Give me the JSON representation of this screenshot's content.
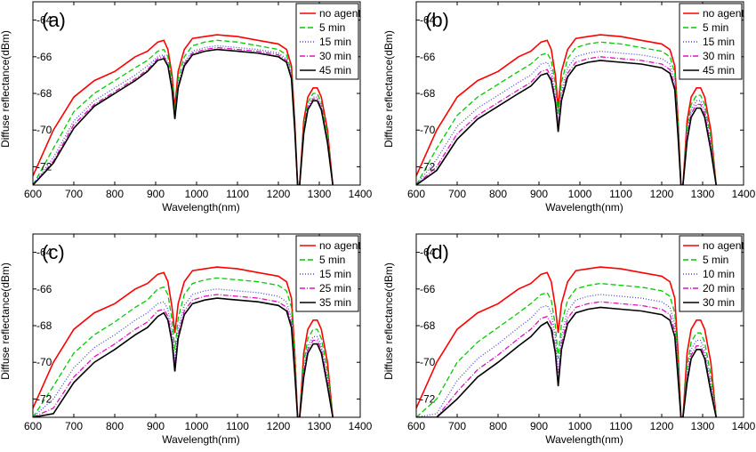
{
  "chart_data": [
    {
      "type": "line",
      "panel_label": "(a)",
      "xlabel": "Wavelength(nm)",
      "ylabel": "Diffuse reflectance(dBm)",
      "xlim": [
        600,
        1400
      ],
      "ylim": [
        -73,
        -63
      ],
      "xticks": [
        600,
        700,
        800,
        900,
        1000,
        1100,
        1200,
        1300,
        1400
      ],
      "yticks": [
        -64,
        -66,
        -68,
        -70,
        -72
      ],
      "legend_position": "top-right",
      "grid": false,
      "x": [
        600,
        650,
        700,
        750,
        800,
        850,
        880,
        905,
        920,
        930,
        940,
        947,
        955,
        970,
        990,
        1020,
        1050,
        1100,
        1150,
        1200,
        1220,
        1232,
        1240,
        1247,
        1252,
        1262,
        1272,
        1285,
        1295,
        1305,
        1320,
        1333
      ],
      "series": [
        {
          "name": "no agent",
          "color": "#ff0000",
          "dash": "solid",
          "values": [
            -72.5,
            -70.0,
            -68.2,
            -67.3,
            -66.8,
            -66.0,
            -65.7,
            -65.2,
            -65.1,
            -65.6,
            -67.0,
            -68.8,
            -66.8,
            -65.6,
            -65.0,
            -64.9,
            -64.8,
            -64.9,
            -65.1,
            -65.3,
            -65.6,
            -66.5,
            -69.5,
            -73.0,
            -73.0,
            -69.5,
            -68.2,
            -67.7,
            -67.7,
            -68.2,
            -70.0,
            -73.0
          ]
        },
        {
          "name": "5  min",
          "color": "#00cc00",
          "dash": "6,3",
          "values": [
            -73.0,
            -71.0,
            -69.0,
            -68.0,
            -67.3,
            -66.6,
            -66.2,
            -65.7,
            -65.6,
            -66.0,
            -67.3,
            -69.0,
            -67.2,
            -66.0,
            -65.4,
            -65.2,
            -65.1,
            -65.2,
            -65.4,
            -65.6,
            -65.9,
            -66.8,
            -69.6,
            -73.0,
            -73.0,
            -69.8,
            -68.5,
            -68.0,
            -68.0,
            -68.5,
            -70.3,
            -73.0
          ]
        },
        {
          "name": "15 min",
          "color": "#4b4bd2",
          "dash": "1,2",
          "values": [
            -73.0,
            -71.5,
            -69.5,
            -68.4,
            -67.7,
            -67.0,
            -66.5,
            -66.0,
            -65.9,
            -66.3,
            -67.6,
            -69.2,
            -67.5,
            -66.3,
            -65.7,
            -65.5,
            -65.4,
            -65.5,
            -65.6,
            -65.8,
            -66.1,
            -67.0,
            -69.8,
            -73.0,
            -73.0,
            -70.0,
            -68.7,
            -68.2,
            -68.2,
            -68.7,
            -70.5,
            -73.0
          ]
        },
        {
          "name": "30 min",
          "color": "#e010c0",
          "dash": "6,2,1,2",
          "values": [
            -73.0,
            -71.7,
            -69.7,
            -68.6,
            -67.9,
            -67.2,
            -66.7,
            -66.1,
            -66.0,
            -66.4,
            -67.7,
            -69.3,
            -67.6,
            -66.4,
            -65.8,
            -65.6,
            -65.5,
            -65.6,
            -65.7,
            -65.9,
            -66.2,
            -67.1,
            -69.9,
            -73.0,
            -73.0,
            -70.1,
            -68.8,
            -68.3,
            -68.3,
            -68.8,
            -70.6,
            -73.0
          ]
        },
        {
          "name": "45 min",
          "color": "#000000",
          "dash": "solid",
          "values": [
            -73.0,
            -71.8,
            -69.9,
            -68.7,
            -68.0,
            -67.3,
            -66.8,
            -66.2,
            -66.1,
            -66.5,
            -67.8,
            -69.4,
            -67.7,
            -66.5,
            -65.9,
            -65.7,
            -65.6,
            -65.7,
            -65.8,
            -66.0,
            -66.3,
            -67.2,
            -70.0,
            -73.0,
            -73.0,
            -70.2,
            -68.9,
            -68.4,
            -68.4,
            -68.9,
            -70.7,
            -73.0
          ]
        }
      ]
    },
    {
      "type": "line",
      "panel_label": "(b)",
      "xlabel": "Wavelength(nm)",
      "ylabel": "Diffuse reflectance(dBm)",
      "xlim": [
        600,
        1400
      ],
      "ylim": [
        -73,
        -63
      ],
      "xticks": [
        600,
        700,
        800,
        900,
        1000,
        1100,
        1200,
        1300,
        1400
      ],
      "yticks": [
        -64,
        -66,
        -68,
        -70,
        -72
      ],
      "legend_position": "top-right",
      "grid": false,
      "x": [
        600,
        650,
        700,
        750,
        800,
        850,
        880,
        905,
        920,
        930,
        940,
        947,
        955,
        970,
        990,
        1020,
        1050,
        1100,
        1150,
        1200,
        1220,
        1232,
        1240,
        1247,
        1252,
        1262,
        1272,
        1285,
        1295,
        1305,
        1320,
        1333
      ],
      "series": [
        {
          "name": "no agent",
          "color": "#ff0000",
          "dash": "solid",
          "values": [
            -72.5,
            -70.0,
            -68.2,
            -67.3,
            -66.8,
            -66.0,
            -65.7,
            -65.2,
            -65.1,
            -65.6,
            -67.0,
            -68.8,
            -66.8,
            -65.6,
            -65.0,
            -64.9,
            -64.8,
            -64.9,
            -65.1,
            -65.3,
            -65.6,
            -66.5,
            -69.5,
            -73.0,
            -73.0,
            -69.5,
            -68.2,
            -67.7,
            -67.7,
            -68.2,
            -70.0,
            -73.0
          ]
        },
        {
          "name": "5  min",
          "color": "#00cc00",
          "dash": "6,3",
          "values": [
            -73.0,
            -71.0,
            -69.2,
            -68.2,
            -67.5,
            -66.8,
            -66.4,
            -65.9,
            -65.8,
            -66.2,
            -67.5,
            -69.2,
            -67.4,
            -66.1,
            -65.5,
            -65.3,
            -65.2,
            -65.3,
            -65.5,
            -65.7,
            -66.0,
            -66.9,
            -69.7,
            -73.0,
            -73.0,
            -69.9,
            -68.6,
            -68.1,
            -68.1,
            -68.6,
            -70.4,
            -73.0
          ]
        },
        {
          "name": "15 min",
          "color": "#4b4bd2",
          "dash": "1,2",
          "values": [
            -73.0,
            -71.6,
            -69.8,
            -68.8,
            -68.1,
            -67.4,
            -67.0,
            -66.4,
            -66.3,
            -66.7,
            -68.0,
            -69.6,
            -67.9,
            -66.6,
            -66.0,
            -65.8,
            -65.7,
            -65.8,
            -65.9,
            -66.1,
            -66.4,
            -67.3,
            -70.0,
            -73.0,
            -73.0,
            -70.2,
            -68.9,
            -68.4,
            -68.4,
            -68.9,
            -70.7,
            -73.0
          ]
        },
        {
          "name": "30 min",
          "color": "#e010c0",
          "dash": "6,2,1,2",
          "values": [
            -73.0,
            -72.0,
            -70.2,
            -69.2,
            -68.5,
            -67.8,
            -67.4,
            -66.8,
            -66.7,
            -67.1,
            -68.3,
            -69.9,
            -68.2,
            -66.9,
            -66.3,
            -66.1,
            -66.0,
            -66.1,
            -66.2,
            -66.4,
            -66.7,
            -67.6,
            -70.2,
            -73.0,
            -73.0,
            -70.4,
            -69.1,
            -68.6,
            -68.6,
            -69.1,
            -70.9,
            -73.0
          ]
        },
        {
          "name": "45 min",
          "color": "#000000",
          "dash": "solid",
          "values": [
            -73.0,
            -72.2,
            -70.5,
            -69.4,
            -68.7,
            -68.0,
            -67.6,
            -67.0,
            -66.9,
            -67.3,
            -68.5,
            -70.1,
            -68.4,
            -67.1,
            -66.5,
            -66.3,
            -66.2,
            -66.3,
            -66.4,
            -66.6,
            -66.9,
            -67.8,
            -70.4,
            -73.0,
            -73.0,
            -70.6,
            -69.3,
            -68.8,
            -68.8,
            -69.3,
            -71.1,
            -73.0
          ]
        }
      ]
    },
    {
      "type": "line",
      "panel_label": "(c)",
      "xlabel": "Wavelength(nm)",
      "ylabel": "Diffuse reflectance(dBm)",
      "xlim": [
        600,
        1400
      ],
      "ylim": [
        -73,
        -63
      ],
      "xticks": [
        600,
        700,
        800,
        900,
        1000,
        1100,
        1200,
        1300,
        1400
      ],
      "yticks": [
        -64,
        -66,
        -68,
        -70,
        -72
      ],
      "legend_position": "top-right",
      "grid": false,
      "x": [
        600,
        650,
        700,
        750,
        800,
        850,
        880,
        905,
        920,
        930,
        940,
        947,
        955,
        970,
        990,
        1020,
        1050,
        1100,
        1150,
        1200,
        1220,
        1232,
        1240,
        1247,
        1252,
        1262,
        1272,
        1285,
        1295,
        1305,
        1320,
        1333
      ],
      "series": [
        {
          "name": "no agent",
          "color": "#ff0000",
          "dash": "solid",
          "values": [
            -72.5,
            -70.0,
            -68.2,
            -67.3,
            -66.8,
            -66.0,
            -65.7,
            -65.2,
            -65.1,
            -65.6,
            -67.0,
            -68.4,
            -66.8,
            -65.6,
            -65.0,
            -64.9,
            -64.8,
            -64.9,
            -65.1,
            -65.3,
            -65.6,
            -66.5,
            -69.5,
            -73.0,
            -73.0,
            -69.5,
            -68.2,
            -67.7,
            -67.7,
            -68.2,
            -70.0,
            -73.0
          ]
        },
        {
          "name": "5  min",
          "color": "#00cc00",
          "dash": "6,3",
          "values": [
            -73.0,
            -71.3,
            -69.5,
            -68.5,
            -67.8,
            -67.0,
            -66.6,
            -66.0,
            -65.9,
            -66.3,
            -67.7,
            -69.3,
            -67.6,
            -66.3,
            -65.7,
            -65.5,
            -65.4,
            -65.5,
            -65.6,
            -65.8,
            -66.1,
            -67.0,
            -69.8,
            -73.0,
            -73.0,
            -70.0,
            -68.7,
            -68.2,
            -68.2,
            -68.7,
            -70.5,
            -73.0
          ]
        },
        {
          "name": "15 min",
          "color": "#4b4bd2",
          "dash": "1,2",
          "values": [
            -73.0,
            -72.0,
            -70.3,
            -69.2,
            -68.5,
            -67.7,
            -67.3,
            -66.8,
            -66.7,
            -67.1,
            -68.3,
            -69.9,
            -68.2,
            -66.9,
            -66.3,
            -66.1,
            -66.0,
            -66.1,
            -66.2,
            -66.4,
            -66.7,
            -67.6,
            -70.2,
            -73.0,
            -73.0,
            -70.4,
            -69.1,
            -68.6,
            -68.6,
            -69.1,
            -70.9,
            -73.0
          ]
        },
        {
          "name": "25 min",
          "color": "#e010c0",
          "dash": "6,2,1,2",
          "values": [
            -73.0,
            -72.5,
            -70.8,
            -69.7,
            -69.0,
            -68.2,
            -67.8,
            -67.2,
            -67.1,
            -67.5,
            -68.7,
            -70.2,
            -68.5,
            -67.2,
            -66.6,
            -66.4,
            -66.3,
            -66.4,
            -66.5,
            -66.7,
            -67.0,
            -67.9,
            -70.4,
            -73.0,
            -73.0,
            -70.6,
            -69.3,
            -68.8,
            -68.8,
            -69.3,
            -71.1,
            -73.0
          ]
        },
        {
          "name": "35 min",
          "color": "#000000",
          "dash": "solid",
          "values": [
            -73.0,
            -72.8,
            -71.1,
            -70.0,
            -69.3,
            -68.5,
            -68.1,
            -67.5,
            -67.3,
            -67.7,
            -68.9,
            -70.5,
            -68.7,
            -67.4,
            -66.8,
            -66.6,
            -66.5,
            -66.6,
            -66.7,
            -66.9,
            -67.2,
            -68.1,
            -70.6,
            -73.0,
            -73.0,
            -70.8,
            -69.5,
            -69.0,
            -69.0,
            -69.5,
            -71.3,
            -73.0
          ]
        }
      ]
    },
    {
      "type": "line",
      "panel_label": "(d)",
      "xlabel": "Wavelength(nm)",
      "ylabel": "Diffuse reflectance(dBm)",
      "xlim": [
        600,
        1400
      ],
      "ylim": [
        -73,
        -63
      ],
      "xticks": [
        600,
        700,
        800,
        900,
        1000,
        1100,
        1200,
        1300,
        1400
      ],
      "yticks": [
        -64,
        -66,
        -68,
        -70,
        -72
      ],
      "legend_position": "top-right",
      "grid": false,
      "x": [
        600,
        650,
        700,
        750,
        800,
        850,
        880,
        905,
        920,
        930,
        940,
        947,
        955,
        970,
        990,
        1020,
        1050,
        1100,
        1150,
        1200,
        1220,
        1232,
        1240,
        1247,
        1252,
        1262,
        1272,
        1285,
        1295,
        1305,
        1320,
        1333
      ],
      "series": [
        {
          "name": "no agent",
          "color": "#ff0000",
          "dash": "solid",
          "values": [
            -72.5,
            -70.0,
            -68.2,
            -67.3,
            -66.8,
            -66.0,
            -65.7,
            -65.2,
            -65.1,
            -65.6,
            -67.0,
            -68.4,
            -66.8,
            -65.6,
            -65.0,
            -64.9,
            -64.8,
            -64.9,
            -65.1,
            -65.3,
            -65.6,
            -66.5,
            -69.5,
            -73.0,
            -73.0,
            -69.5,
            -68.2,
            -67.7,
            -67.7,
            -68.2,
            -70.0,
            -73.0
          ]
        },
        {
          "name": "5  min",
          "color": "#00cc00",
          "dash": "6,3",
          "values": [
            -73.0,
            -72.0,
            -70.0,
            -68.9,
            -68.1,
            -67.3,
            -66.8,
            -66.3,
            -66.2,
            -66.6,
            -68.0,
            -69.8,
            -67.9,
            -66.6,
            -66.0,
            -65.8,
            -65.7,
            -65.8,
            -65.9,
            -66.1,
            -66.4,
            -67.3,
            -70.0,
            -73.0,
            -73.0,
            -70.2,
            -68.9,
            -68.4,
            -68.4,
            -68.9,
            -70.7,
            -73.0
          ]
        },
        {
          "name": "10 min",
          "color": "#4b4bd2",
          "dash": "1,2",
          "values": [
            -73.0,
            -72.8,
            -71.0,
            -69.8,
            -69.0,
            -68.1,
            -67.6,
            -67.0,
            -66.9,
            -67.3,
            -68.6,
            -70.6,
            -68.6,
            -67.2,
            -66.6,
            -66.4,
            -66.3,
            -66.4,
            -66.5,
            -66.7,
            -67.0,
            -67.9,
            -70.4,
            -73.0,
            -73.0,
            -70.6,
            -69.3,
            -68.8,
            -68.8,
            -69.3,
            -71.1,
            -73.0
          ]
        },
        {
          "name": "20 min",
          "color": "#e010c0",
          "dash": "6,2,1,2",
          "values": [
            -73.0,
            -73.0,
            -71.6,
            -70.4,
            -69.6,
            -68.7,
            -68.2,
            -67.6,
            -67.5,
            -67.9,
            -69.2,
            -71.0,
            -69.0,
            -67.6,
            -67.0,
            -66.8,
            -66.7,
            -66.8,
            -66.9,
            -67.1,
            -67.4,
            -68.3,
            -70.7,
            -73.0,
            -73.0,
            -70.9,
            -69.6,
            -69.1,
            -69.1,
            -69.6,
            -71.4,
            -73.0
          ]
        },
        {
          "name": "30 min",
          "color": "#000000",
          "dash": "solid",
          "values": [
            -73.0,
            -73.0,
            -72.0,
            -70.8,
            -70.0,
            -69.1,
            -68.6,
            -68.0,
            -67.8,
            -68.2,
            -69.5,
            -71.3,
            -69.3,
            -67.9,
            -67.3,
            -67.1,
            -67.0,
            -67.1,
            -67.2,
            -67.4,
            -67.7,
            -68.6,
            -70.9,
            -73.0,
            -73.0,
            -71.1,
            -69.8,
            -69.3,
            -69.3,
            -69.8,
            -71.6,
            -73.0
          ]
        }
      ]
    }
  ]
}
